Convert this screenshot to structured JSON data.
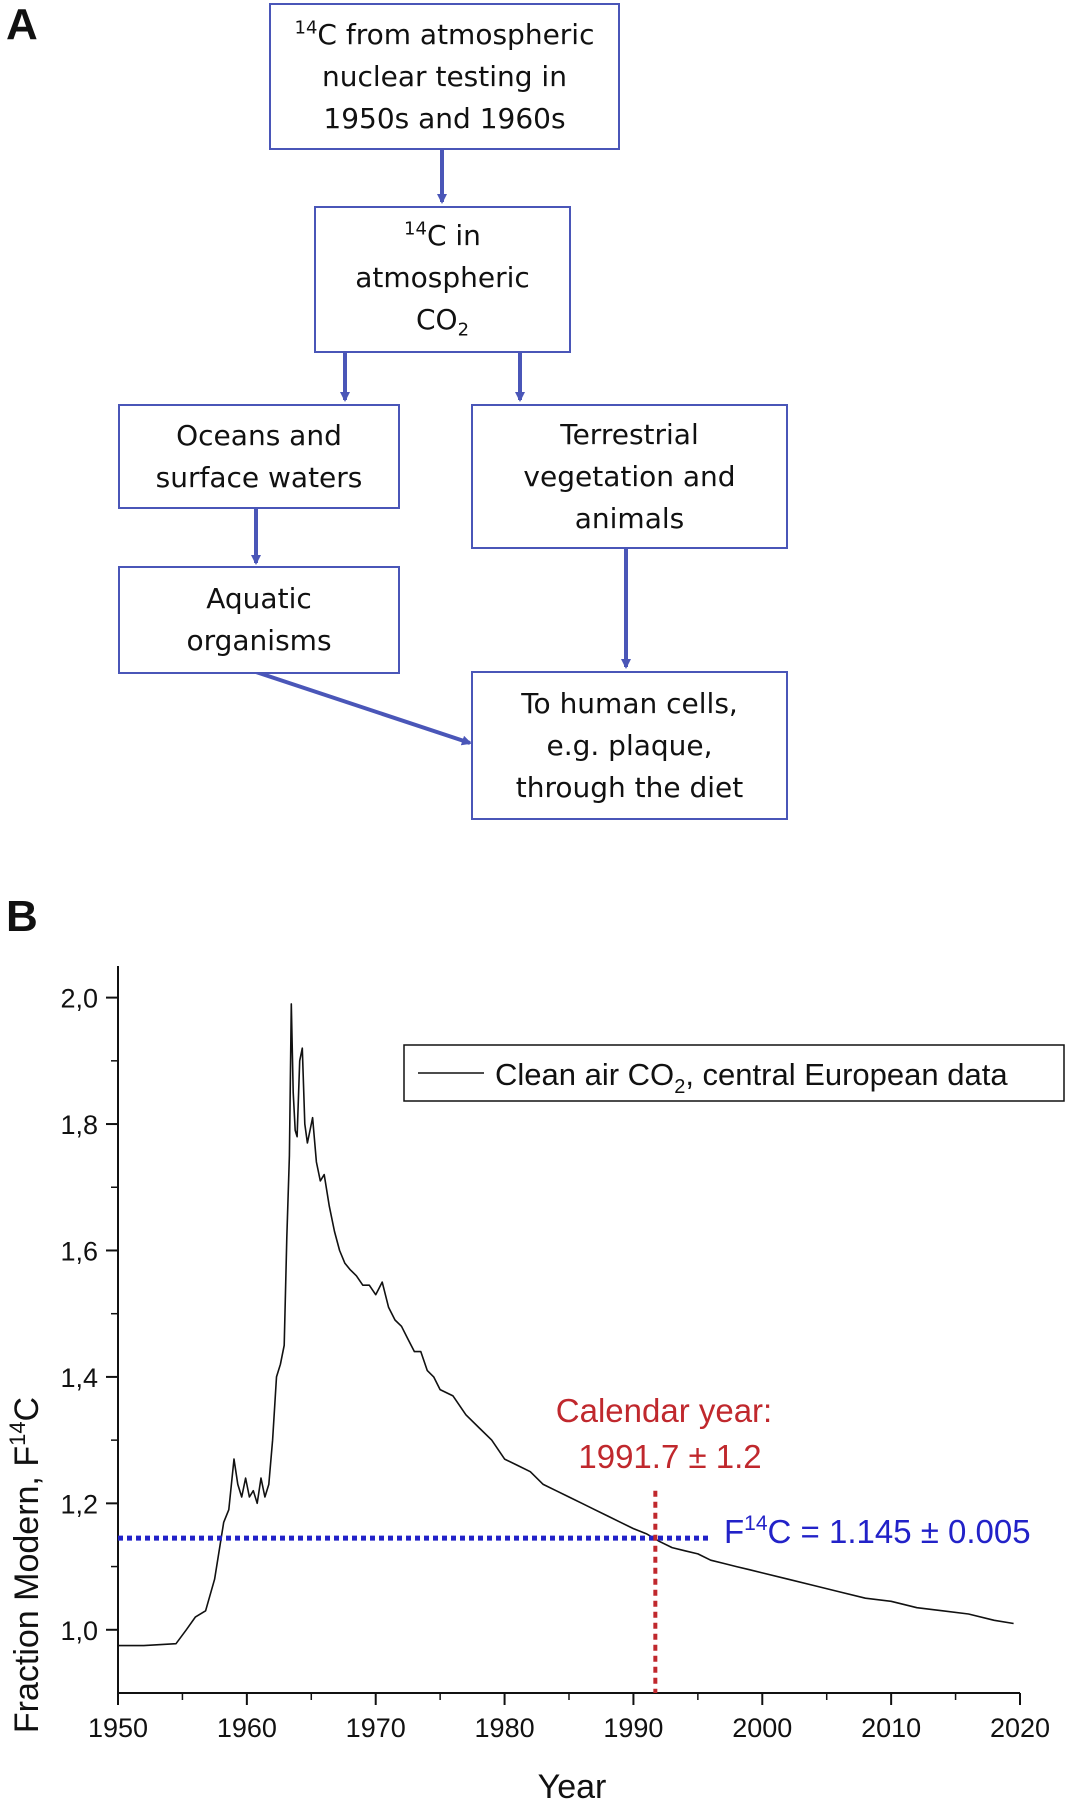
{
  "panel_a": {
    "label": "A",
    "boxes": {
      "nuclear": {
        "sup": "14",
        "lines": [
          "C from atmospheric",
          "nuclear testing in",
          "1950s and 1960s"
        ]
      },
      "atmos": {
        "sup": "14",
        "line1": "C in",
        "line2": "atmospheric",
        "co": "CO",
        "sub": "2"
      },
      "oceans": {
        "lines": [
          "Oceans and",
          "surface waters"
        ]
      },
      "terrestrial": {
        "lines": [
          "Terrestrial",
          "vegetation and",
          "animals"
        ]
      },
      "aquatic": {
        "lines": [
          "Aquatic",
          "organisms"
        ]
      },
      "human": {
        "lines": [
          "To human cells,",
          "e.g. plaque,",
          "through the diet"
        ]
      }
    },
    "arrow_color": "#4a56b8"
  },
  "panel_b": {
    "label": "B",
    "legend": {
      "pre": "Clean air CO",
      "sub": "2",
      "post": ", central European data"
    },
    "ylabel": {
      "pre": "Fraction Modern, F",
      "sup": "14",
      "post": "C"
    },
    "xlabel": "Year",
    "annot_calendar": {
      "line1": "Calendar year:",
      "line2": "1991.7 ± 1.2",
      "color": "#c0282d"
    },
    "annot_f14c": {
      "pre": "F",
      "sup": "14",
      "post": "C = 1.145 ± 0.005",
      "color": "#2222c8"
    }
  },
  "chart_data": {
    "type": "line",
    "xlim": [
      1950,
      2020
    ],
    "ylim": [
      0.9,
      2.05
    ],
    "x_ticks": [
      1950,
      1960,
      1970,
      1980,
      1990,
      2000,
      2010,
      2020
    ],
    "x_tick_labels": [
      "1950",
      "1960",
      "1970",
      "1980",
      "1990",
      "2000",
      "2010",
      "2020"
    ],
    "y_ticks": [
      1.0,
      1.2,
      1.4,
      1.6,
      1.8,
      2.0
    ],
    "y_tick_labels": [
      "1,0",
      "1,2",
      "1,4",
      "1,6",
      "1,8",
      "2,0"
    ],
    "legend_position": "top-right",
    "grid": false,
    "series": [
      {
        "name": "Clean air CO2, central European data",
        "color": "#111111",
        "x": [
          1950,
          1952,
          1954.5,
          1955.3,
          1956,
          1956.8,
          1957.5,
          1958.2,
          1958.6,
          1959.0,
          1959.3,
          1959.6,
          1959.9,
          1960.2,
          1960.5,
          1960.8,
          1961.1,
          1961.4,
          1961.7,
          1962.0,
          1962.3,
          1962.6,
          1962.9,
          1963.1,
          1963.3,
          1963.45,
          1963.6,
          1963.75,
          1963.9,
          1964.1,
          1964.3,
          1964.5,
          1964.7,
          1964.9,
          1965.1,
          1965.4,
          1965.7,
          1966.0,
          1966.4,
          1966.8,
          1967.2,
          1967.6,
          1968.0,
          1968.5,
          1969.0,
          1969.5,
          1970.0,
          1970.5,
          1971.0,
          1971.5,
          1972.0,
          1972.5,
          1973.0,
          1973.5,
          1974.0,
          1974.5,
          1975.0,
          1976.0,
          1977.0,
          1978.0,
          1979.0,
          1980.0,
          1981.0,
          1982.0,
          1983.0,
          1984.0,
          1985.0,
          1986.0,
          1987.0,
          1988.0,
          1989.0,
          1990.0,
          1991.0,
          1992.0,
          1993.0,
          1994.0,
          1995.0,
          1996.0,
          1997.0,
          1998.0,
          1999.0,
          2000.0,
          2002.0,
          2004.0,
          2006.0,
          2008.0,
          2010.0,
          2012.0,
          2014.0,
          2016.0,
          2018.0,
          2019.5
        ],
        "y": [
          0.975,
          0.975,
          0.978,
          1.0,
          1.02,
          1.03,
          1.08,
          1.17,
          1.19,
          1.27,
          1.23,
          1.21,
          1.24,
          1.21,
          1.22,
          1.2,
          1.24,
          1.21,
          1.23,
          1.3,
          1.4,
          1.42,
          1.45,
          1.62,
          1.75,
          1.99,
          1.85,
          1.79,
          1.78,
          1.9,
          1.92,
          1.8,
          1.77,
          1.79,
          1.81,
          1.74,
          1.71,
          1.72,
          1.67,
          1.63,
          1.6,
          1.58,
          1.57,
          1.56,
          1.545,
          1.545,
          1.53,
          1.55,
          1.51,
          1.49,
          1.48,
          1.46,
          1.44,
          1.44,
          1.41,
          1.4,
          1.38,
          1.37,
          1.34,
          1.32,
          1.3,
          1.27,
          1.26,
          1.25,
          1.23,
          1.22,
          1.21,
          1.2,
          1.19,
          1.18,
          1.17,
          1.16,
          1.152,
          1.14,
          1.13,
          1.125,
          1.12,
          1.11,
          1.105,
          1.1,
          1.095,
          1.09,
          1.08,
          1.07,
          1.06,
          1.05,
          1.045,
          1.035,
          1.03,
          1.025,
          1.015,
          1.01
        ]
      }
    ],
    "reference_lines": [
      {
        "orientation": "horizontal",
        "value": 1.145,
        "x_from": 1950,
        "x_to": 1996,
        "color": "#2222c8",
        "style": "dotted"
      },
      {
        "orientation": "vertical",
        "value": 1991.7,
        "y_from": 0.9,
        "y_to": 1.22,
        "color": "#c0282d",
        "style": "dotted"
      }
    ]
  }
}
